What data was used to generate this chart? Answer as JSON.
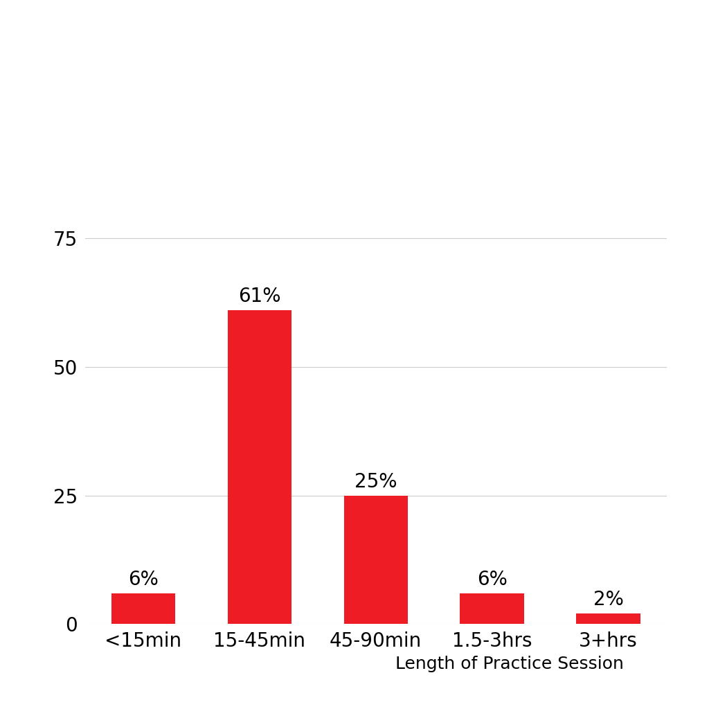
{
  "categories": [
    "<15min",
    "15-45min",
    "45-90min",
    "1.5-3hrs",
    "3+hrs"
  ],
  "values": [
    6,
    61,
    25,
    6,
    2
  ],
  "labels": [
    "6%",
    "61%",
    "25%",
    "6%",
    "2%"
  ],
  "bar_color": "#ee1c25",
  "background_color": "#ffffff",
  "xlabel": "Length of Practice Session",
  "yticks": [
    0,
    25,
    50,
    75
  ],
  "ylim": [
    0,
    80
  ],
  "grid_color": "#cccccc",
  "label_fontsize": 20,
  "tick_fontsize": 20,
  "xlabel_fontsize": 18,
  "bar_width": 0.55
}
